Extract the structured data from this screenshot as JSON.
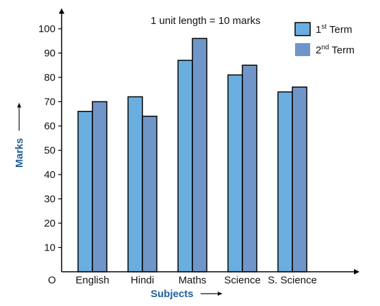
{
  "chart_data": {
    "type": "bar",
    "annotation": "1 unit length = 10 marks",
    "xlabel": "Subjects",
    "ylabel": "Marks",
    "origin_label": "O",
    "categories": [
      "English",
      "Hindi",
      "Maths",
      "Science",
      "S. Science"
    ],
    "series": [
      {
        "name_base": "1",
        "name_sup": "st",
        "name_rest": " Term",
        "color": "#6aaee0",
        "values": [
          66,
          72,
          87,
          81,
          74
        ]
      },
      {
        "name_base": "2",
        "name_sup": "nd",
        "name_rest": " Term",
        "color": "#7095c8",
        "values": [
          70,
          64,
          96,
          85,
          76
        ]
      }
    ],
    "yticks": [
      10,
      20,
      30,
      40,
      50,
      60,
      70,
      80,
      90,
      100
    ],
    "ylim": [
      0,
      110
    ],
    "grid": false,
    "legend_position": "top-right"
  }
}
